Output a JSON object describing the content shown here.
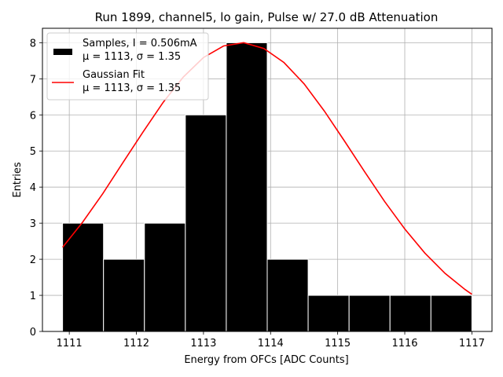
{
  "chart_data": {
    "type": "bar",
    "title": "Run 1899, channel5, lo gain, Pulse w/ 27.0 dB Attenuation",
    "xlabel": "Energy from OFCs [ADC Counts]",
    "ylabel": "Entries",
    "xlim": [
      1110.6,
      1117.3
    ],
    "ylim": [
      0,
      8.4
    ],
    "xticks": [
      "1111",
      "1112",
      "1113",
      "1114",
      "1115",
      "1116",
      "1117"
    ],
    "yticks": [
      "0",
      "1",
      "2",
      "3",
      "4",
      "5",
      "6",
      "7",
      "8"
    ],
    "grid": true,
    "legend_position": "top-left",
    "histogram": {
      "bin_edges": [
        1110.9,
        1111.51,
        1112.12,
        1112.73,
        1113.34,
        1113.95,
        1114.56,
        1115.17,
        1115.78,
        1116.39,
        1117.0
      ],
      "counts": [
        3,
        2,
        3,
        6,
        8,
        2,
        1,
        1,
        1,
        1
      ],
      "color": "#000000"
    },
    "fit": {
      "x": [
        1110.9,
        1111.2,
        1111.5,
        1111.8,
        1112.1,
        1112.4,
        1112.7,
        1113.0,
        1113.3,
        1113.6,
        1113.9,
        1114.2,
        1114.5,
        1114.8,
        1115.1,
        1115.4,
        1115.7,
        1116.0,
        1116.3,
        1116.6,
        1116.9,
        1117.0
      ],
      "y": [
        2.33,
        3.03,
        3.82,
        4.68,
        5.53,
        6.35,
        7.05,
        7.59,
        7.91,
        8.0,
        7.84,
        7.45,
        6.86,
        6.11,
        5.28,
        4.43,
        3.6,
        2.84,
        2.17,
        1.61,
        1.16,
        1.03
      ],
      "color": "#ff0000"
    },
    "legend": [
      {
        "line1": "Samples, I = 0.506mA",
        "line2": "μ = 1113, σ = 1.35"
      },
      {
        "line1": "Gaussian Fit",
        "line2": "μ = 1113, σ = 1.35"
      }
    ]
  }
}
